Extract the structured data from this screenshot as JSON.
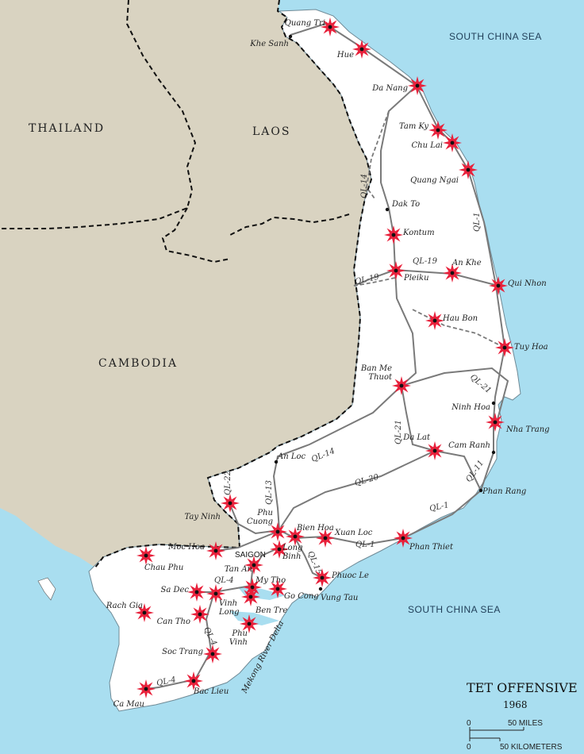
{
  "title": "TET OFFENSIVE",
  "year": "1968",
  "colors": {
    "sea": "#a9def0",
    "foreign_land": "#d9d3c1",
    "vietnam_land": "#ffffff",
    "attack_marker": "#e8213b",
    "border": "#111111"
  },
  "countries": [
    "THAILAND",
    "LAOS",
    "CAMBODIA"
  ],
  "seas": [
    "SOUTH CHINA SEA",
    "SOUTH CHINA SEA"
  ],
  "saigon_label": "SAIGON",
  "places": [
    {
      "name": "Quang Tri",
      "attacked": true
    },
    {
      "name": "Khe Sanh",
      "attacked": false
    },
    {
      "name": "Hue",
      "attacked": true
    },
    {
      "name": "Da Nang",
      "attacked": true
    },
    {
      "name": "Tam Ky",
      "attacked": true
    },
    {
      "name": "Chu Lai",
      "attacked": true
    },
    {
      "name": "Quang Ngai",
      "attacked": true
    },
    {
      "name": "Dak To",
      "attacked": false
    },
    {
      "name": "Kontum",
      "attacked": true
    },
    {
      "name": "An Khe",
      "attacked": true
    },
    {
      "name": "Pleiku",
      "attacked": true
    },
    {
      "name": "Qui Nhon",
      "attacked": true
    },
    {
      "name": "Hau Bon",
      "attacked": true
    },
    {
      "name": "Tuy Hoa",
      "attacked": true
    },
    {
      "name": "Ban Me\nThuot",
      "attacked": true
    },
    {
      "name": "Ninh Hoa",
      "attacked": false
    },
    {
      "name": "Nha Trang",
      "attacked": true
    },
    {
      "name": "Da Lat",
      "attacked": true
    },
    {
      "name": "Cam Ranh",
      "attacked": false
    },
    {
      "name": "Phan Rang",
      "attacked": false
    },
    {
      "name": "An Loc",
      "attacked": false
    },
    {
      "name": "Tay Ninh",
      "attacked": true
    },
    {
      "name": "Phu\nCuong",
      "attacked": true
    },
    {
      "name": "Bien Hoa",
      "attacked": true
    },
    {
      "name": "Xuan Loc",
      "attacked": true
    },
    {
      "name": "Long\nBinh",
      "attacked": true
    },
    {
      "name": "Phan Thiet",
      "attacked": true
    },
    {
      "name": "Moc Hoa",
      "attacked": true
    },
    {
      "name": "Chau Phu",
      "attacked": true
    },
    {
      "name": "Tan An",
      "attacked": true
    },
    {
      "name": "My Tho",
      "attacked": true
    },
    {
      "name": "Phuoc Le",
      "attacked": true
    },
    {
      "name": "Go Cong",
      "attacked": true
    },
    {
      "name": "Vung Tau",
      "attacked": false
    },
    {
      "name": "Sa Dec",
      "attacked": true
    },
    {
      "name": "Ben Tre",
      "attacked": true
    },
    {
      "name": "Rach Gia",
      "attacked": true
    },
    {
      "name": "Can Tho",
      "attacked": true
    },
    {
      "name": "Vinh\nLong",
      "attacked": true
    },
    {
      "name": "Phu\nVinh",
      "attacked": true
    },
    {
      "name": "Soc Trang",
      "attacked": true
    },
    {
      "name": "Bac Lieu",
      "attacked": true
    },
    {
      "name": "Ca Mau",
      "attacked": true
    }
  ],
  "roads": [
    "QL-14",
    "QL-1",
    "QL-19",
    "QL-19",
    "QL-21",
    "QL-21",
    "QL-11",
    "QL-14",
    "QL-20",
    "QL-1",
    "QL-22",
    "QL-13",
    "QL-15",
    "QL-1",
    "QL-4",
    "QL-4",
    "QL-4"
  ],
  "river": "Mekong   River   Delta",
  "scale": {
    "miles": "50 MILES",
    "km": "50 KILOMETERS",
    "zero": "0"
  }
}
